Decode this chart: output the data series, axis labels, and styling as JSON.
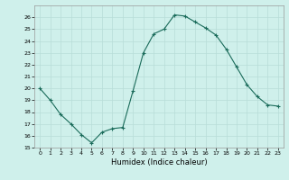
{
  "x": [
    0,
    1,
    2,
    3,
    4,
    5,
    6,
    7,
    8,
    9,
    10,
    11,
    12,
    13,
    14,
    15,
    16,
    17,
    18,
    19,
    20,
    21,
    22,
    23
  ],
  "y": [
    20.0,
    19.0,
    17.8,
    17.0,
    16.1,
    15.4,
    16.3,
    16.6,
    16.7,
    19.8,
    23.0,
    24.6,
    25.0,
    26.2,
    26.1,
    25.6,
    25.1,
    24.5,
    23.3,
    21.8,
    20.3,
    19.3,
    18.6,
    18.5
  ],
  "title": "",
  "xlabel": "Humidex (Indice chaleur)",
  "ylabel": "",
  "line_color": "#1a6b5a",
  "marker": "+",
  "bg_color": "#cff0eb",
  "grid_color": "#b8ddd8",
  "xlim": [
    -0.5,
    23.5
  ],
  "ylim": [
    15,
    27
  ],
  "yticks": [
    15,
    16,
    17,
    18,
    19,
    20,
    21,
    22,
    23,
    24,
    25,
    26
  ],
  "xticks": [
    0,
    1,
    2,
    3,
    4,
    5,
    6,
    7,
    8,
    9,
    10,
    11,
    12,
    13,
    14,
    15,
    16,
    17,
    18,
    19,
    20,
    21,
    22,
    23
  ]
}
